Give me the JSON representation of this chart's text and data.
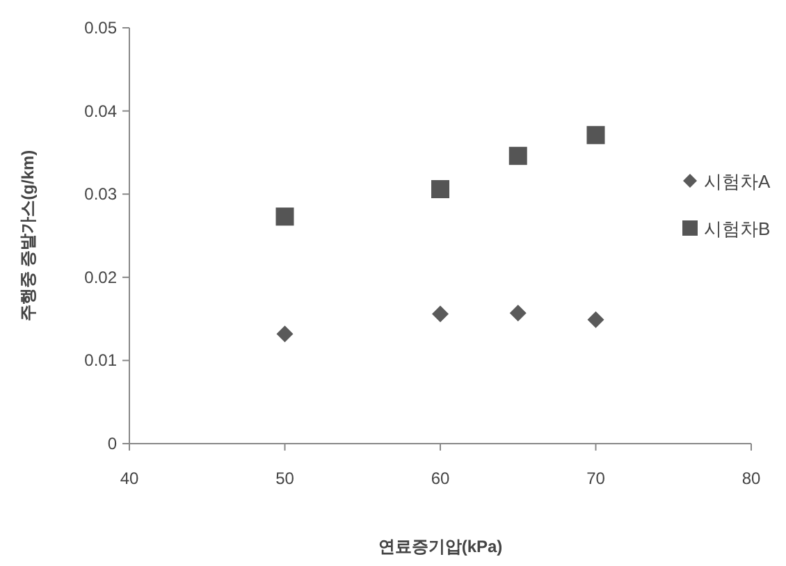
{
  "chart_data": {
    "type": "scatter",
    "xlabel": "연료증기압(kPa)",
    "ylabel": "주행중 증발가스(g/km)",
    "x": [
      50,
      60,
      65,
      70
    ],
    "series": [
      {
        "name": "시험차A",
        "color": "#5a5a5a",
        "marker": "diamond",
        "values": [
          0.0132,
          0.0156,
          0.0157,
          0.0149
        ]
      },
      {
        "name": "시험차B",
        "color": "#555555",
        "marker": "square",
        "values": [
          0.0273,
          0.0306,
          0.0346,
          0.0371
        ]
      }
    ],
    "xlim": [
      40,
      80
    ],
    "xticks": [
      40,
      50,
      60,
      70,
      80
    ],
    "ylim": [
      0,
      0.05
    ],
    "yticks": [
      0,
      0.01,
      0.02,
      0.03,
      0.04,
      0.05
    ],
    "grid": false,
    "legend": "right"
  }
}
